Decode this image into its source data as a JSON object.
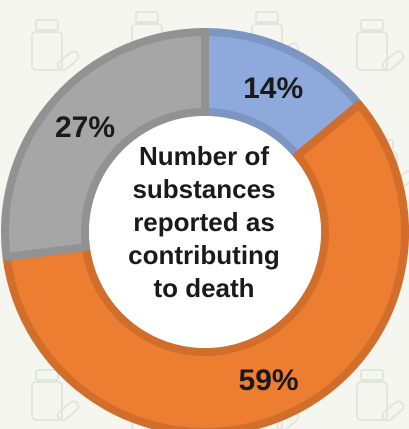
{
  "chart_data": {
    "type": "pie",
    "variant": "donut",
    "categories": [
      "",
      "",
      ""
    ],
    "values": [
      14,
      59,
      27
    ],
    "labels": [
      "14%",
      "59%",
      "27%"
    ],
    "center_text_lines": [
      "Number of",
      "substances",
      "reported as",
      "contributing",
      "to death"
    ],
    "colors": [
      "#8ea9db",
      "#ed7d31",
      "#a6a6a6"
    ],
    "legend": "none"
  },
  "background": {
    "icon": "pill-bottle-icon",
    "color": "#f4f6ef"
  }
}
